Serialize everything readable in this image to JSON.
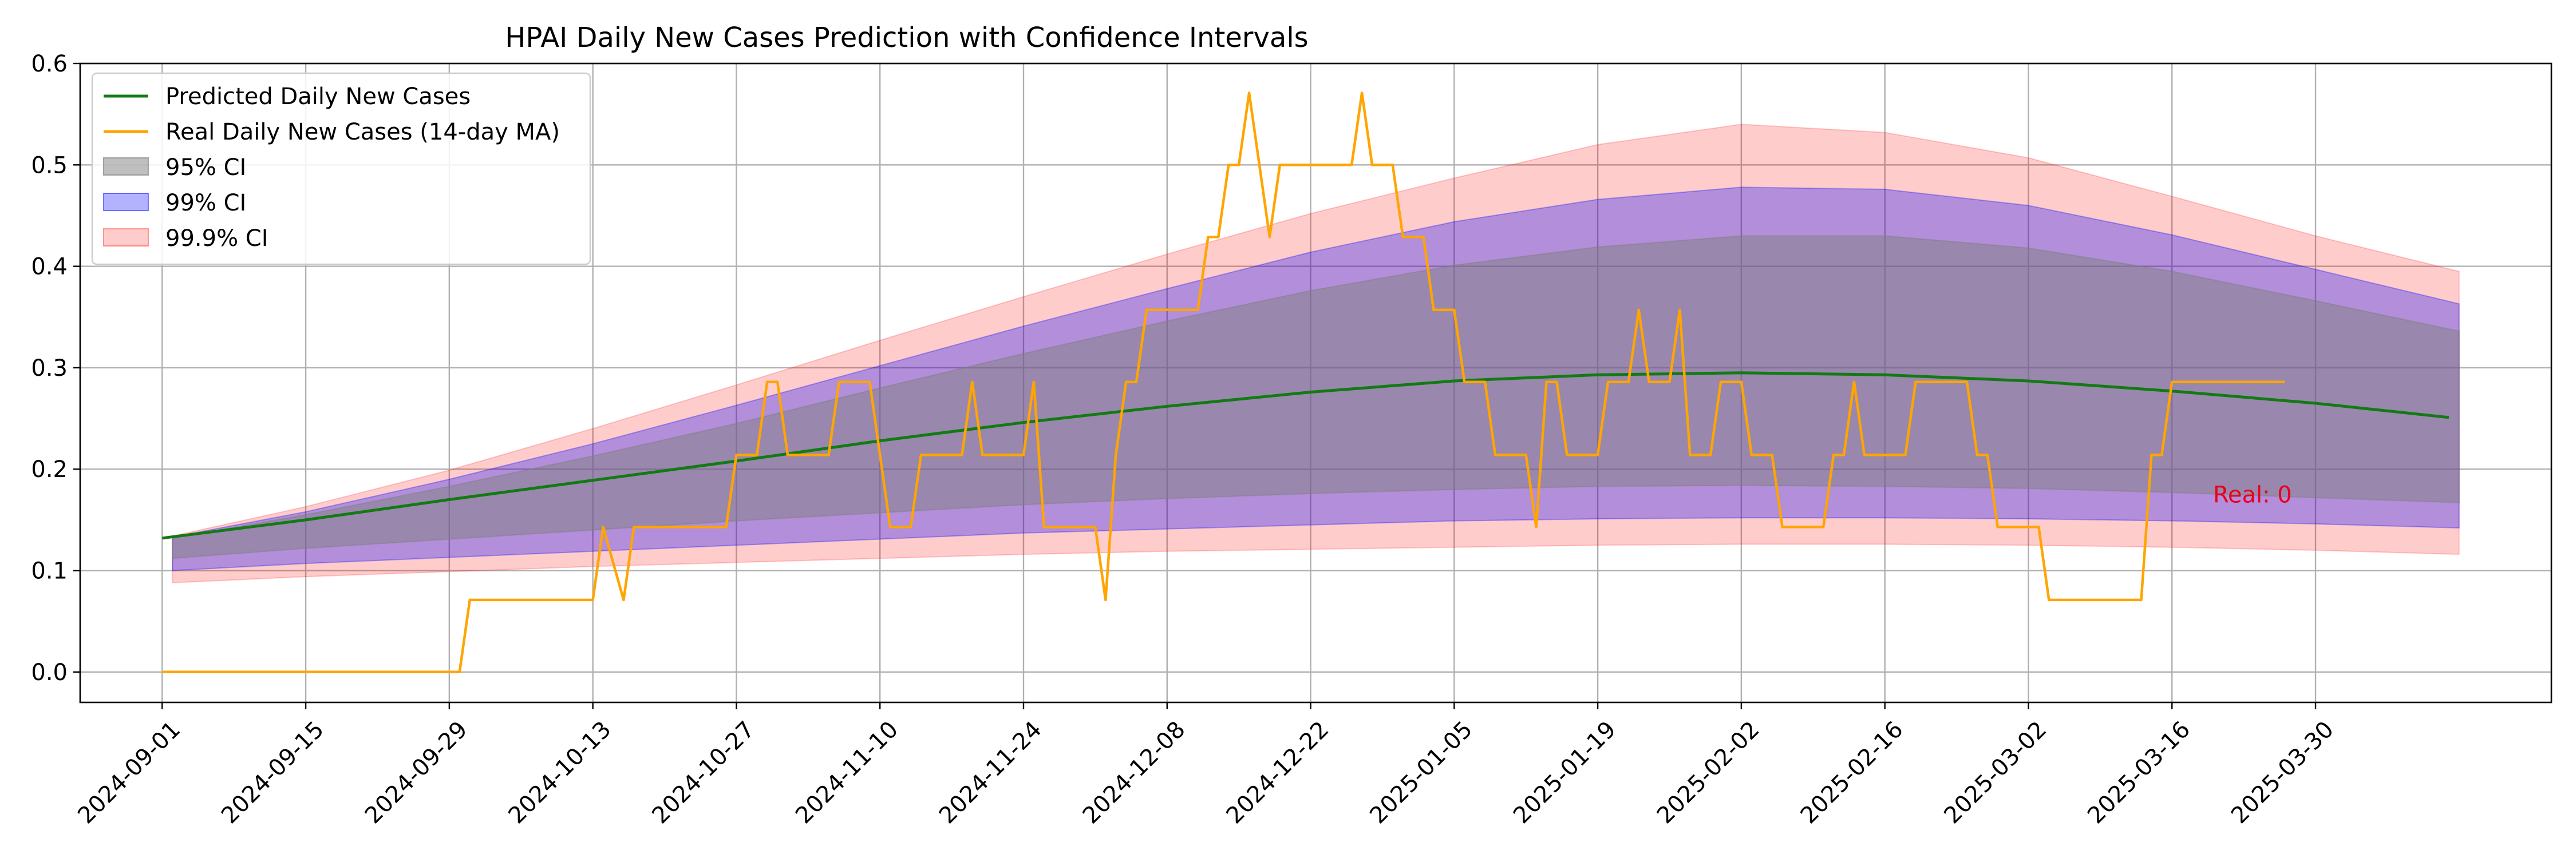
{
  "chart_data": {
    "type": "line",
    "title": "HPAI Daily New Cases Prediction with Confidence Intervals",
    "xlabel": "",
    "ylabel": "",
    "x_range": [
      "2024-08-24",
      "2025-04-22"
    ],
    "ylim": [
      -0.03,
      0.6
    ],
    "y_ticks": [
      0.0,
      0.1,
      0.2,
      0.3,
      0.4,
      0.5,
      0.6
    ],
    "y_tick_labels": [
      "0.0",
      "0.1",
      "0.2",
      "0.3",
      "0.4",
      "0.5",
      "0.6"
    ],
    "x_ticks": [
      "2024-09-01",
      "2024-09-15",
      "2024-09-29",
      "2024-10-13",
      "2024-10-27",
      "2024-11-10",
      "2024-11-24",
      "2024-12-08",
      "2024-12-22",
      "2025-01-05",
      "2025-01-19",
      "2025-02-02",
      "2025-02-16",
      "2025-03-02",
      "2025-03-16",
      "2025-03-30"
    ],
    "grid": true,
    "legend_position": "top-left",
    "annotation": {
      "text": "Real: 0",
      "x": "2025-03-20",
      "y": 0.175,
      "color": "#e8001c"
    },
    "series": [
      {
        "name": "Predicted Daily New Cases",
        "kind": "line",
        "color": "#137a13",
        "points": [
          [
            "2024-09-01",
            0.132
          ],
          [
            "2024-09-15",
            0.15
          ],
          [
            "2024-09-29",
            0.17
          ],
          [
            "2024-10-13",
            0.189
          ],
          [
            "2024-10-27",
            0.208
          ],
          [
            "2024-11-10",
            0.228
          ],
          [
            "2024-11-24",
            0.246
          ],
          [
            "2024-12-08",
            0.262
          ],
          [
            "2024-12-22",
            0.276
          ],
          [
            "2025-01-05",
            0.287
          ],
          [
            "2025-01-19",
            0.293
          ],
          [
            "2025-02-02",
            0.295
          ],
          [
            "2025-02-16",
            0.293
          ],
          [
            "2025-03-02",
            0.287
          ],
          [
            "2025-03-16",
            0.277
          ],
          [
            "2025-03-30",
            0.265
          ],
          [
            "2025-04-12",
            0.251
          ]
        ]
      },
      {
        "name": "Real Daily New Cases (14-day MA)",
        "kind": "step",
        "color": "#ffa500",
        "points": [
          [
            "2024-09-01",
            0.0
          ],
          [
            "2024-09-30",
            0.0
          ],
          [
            "2024-10-01",
            0.071
          ],
          [
            "2024-10-13",
            0.071
          ],
          [
            "2024-10-14",
            0.143
          ],
          [
            "2024-10-16",
            0.071
          ],
          [
            "2024-10-17",
            0.143
          ],
          [
            "2024-10-26",
            0.143
          ],
          [
            "2024-10-27",
            0.214
          ],
          [
            "2024-10-29",
            0.214
          ],
          [
            "2024-10-30",
            0.286
          ],
          [
            "2024-10-31",
            0.286
          ],
          [
            "2024-11-01",
            0.214
          ],
          [
            "2024-11-05",
            0.214
          ],
          [
            "2024-11-06",
            0.286
          ],
          [
            "2024-11-09",
            0.286
          ],
          [
            "2024-11-10",
            0.214
          ],
          [
            "2024-11-11",
            0.143
          ],
          [
            "2024-11-13",
            0.143
          ],
          [
            "2024-11-14",
            0.214
          ],
          [
            "2024-11-18",
            0.214
          ],
          [
            "2024-11-19",
            0.286
          ],
          [
            "2024-11-20",
            0.214
          ],
          [
            "2024-11-24",
            0.214
          ],
          [
            "2024-11-25",
            0.286
          ],
          [
            "2024-11-26",
            0.143
          ],
          [
            "2024-12-01",
            0.143
          ],
          [
            "2024-12-02",
            0.071
          ],
          [
            "2024-12-03",
            0.214
          ],
          [
            "2024-12-04",
            0.286
          ],
          [
            "2024-12-05",
            0.286
          ],
          [
            "2024-12-06",
            0.357
          ],
          [
            "2024-12-11",
            0.357
          ],
          [
            "2024-12-12",
            0.429
          ],
          [
            "2024-12-13",
            0.429
          ],
          [
            "2024-12-14",
            0.5
          ],
          [
            "2024-12-15",
            0.5
          ],
          [
            "2024-12-16",
            0.571
          ],
          [
            "2024-12-18",
            0.429
          ],
          [
            "2024-12-19",
            0.5
          ],
          [
            "2024-12-26",
            0.5
          ],
          [
            "2024-12-27",
            0.571
          ],
          [
            "2024-12-28",
            0.5
          ],
          [
            "2024-12-30",
            0.5
          ],
          [
            "2024-12-31",
            0.429
          ],
          [
            "2025-01-02",
            0.429
          ],
          [
            "2025-01-03",
            0.357
          ],
          [
            "2025-01-05",
            0.357
          ],
          [
            "2025-01-06",
            0.286
          ],
          [
            "2025-01-08",
            0.286
          ],
          [
            "2025-01-09",
            0.214
          ],
          [
            "2025-01-12",
            0.214
          ],
          [
            "2025-01-13",
            0.143
          ],
          [
            "2025-01-14",
            0.286
          ],
          [
            "2025-01-15",
            0.286
          ],
          [
            "2025-01-16",
            0.214
          ],
          [
            "2025-01-19",
            0.214
          ],
          [
            "2025-01-20",
            0.286
          ],
          [
            "2025-01-22",
            0.286
          ],
          [
            "2025-01-23",
            0.357
          ],
          [
            "2025-01-24",
            0.286
          ],
          [
            "2025-01-26",
            0.286
          ],
          [
            "2025-01-27",
            0.357
          ],
          [
            "2025-01-28",
            0.214
          ],
          [
            "2025-01-30",
            0.214
          ],
          [
            "2025-01-31",
            0.286
          ],
          [
            "2025-02-02",
            0.286
          ],
          [
            "2025-02-03",
            0.214
          ],
          [
            "2025-02-05",
            0.214
          ],
          [
            "2025-02-06",
            0.143
          ],
          [
            "2025-02-10",
            0.143
          ],
          [
            "2025-02-11",
            0.214
          ],
          [
            "2025-02-12",
            0.214
          ],
          [
            "2025-02-13",
            0.286
          ],
          [
            "2025-02-14",
            0.214
          ],
          [
            "2025-02-18",
            0.214
          ],
          [
            "2025-02-19",
            0.286
          ],
          [
            "2025-02-24",
            0.286
          ],
          [
            "2025-02-25",
            0.214
          ],
          [
            "2025-02-26",
            0.214
          ],
          [
            "2025-02-27",
            0.143
          ],
          [
            "2025-03-03",
            0.143
          ],
          [
            "2025-03-04",
            0.071
          ],
          [
            "2025-03-13",
            0.071
          ],
          [
            "2025-03-14",
            0.214
          ],
          [
            "2025-03-15",
            0.214
          ],
          [
            "2025-03-16",
            0.286
          ],
          [
            "2025-03-27",
            0.286
          ]
        ]
      },
      {
        "name": "95% CI",
        "kind": "band",
        "color": "#808080",
        "upper": [
          [
            "2024-09-02",
            0.132
          ],
          [
            "2024-09-15",
            0.155
          ],
          [
            "2024-09-29",
            0.183
          ],
          [
            "2024-10-13",
            0.213
          ],
          [
            "2024-10-27",
            0.245
          ],
          [
            "2024-11-10",
            0.28
          ],
          [
            "2024-11-24",
            0.314
          ],
          [
            "2024-12-08",
            0.346
          ],
          [
            "2024-12-22",
            0.376
          ],
          [
            "2025-01-05",
            0.401
          ],
          [
            "2025-01-19",
            0.419
          ],
          [
            "2025-02-02",
            0.43
          ],
          [
            "2025-02-16",
            0.43
          ],
          [
            "2025-03-02",
            0.418
          ],
          [
            "2025-03-16",
            0.395
          ],
          [
            "2025-03-30",
            0.366
          ],
          [
            "2025-04-13",
            0.336
          ]
        ],
        "lower": [
          [
            "2024-09-02",
            0.112
          ],
          [
            "2024-09-15",
            0.122
          ],
          [
            "2024-09-29",
            0.131
          ],
          [
            "2024-10-13",
            0.14
          ],
          [
            "2024-10-27",
            0.149
          ],
          [
            "2024-11-10",
            0.157
          ],
          [
            "2024-11-24",
            0.165
          ],
          [
            "2024-12-08",
            0.171
          ],
          [
            "2024-12-22",
            0.176
          ],
          [
            "2025-01-05",
            0.18
          ],
          [
            "2025-01-19",
            0.183
          ],
          [
            "2025-02-02",
            0.184
          ],
          [
            "2025-02-16",
            0.183
          ],
          [
            "2025-03-02",
            0.181
          ],
          [
            "2025-03-16",
            0.177
          ],
          [
            "2025-03-30",
            0.172
          ],
          [
            "2025-04-13",
            0.167
          ]
        ]
      },
      {
        "name": "99% CI",
        "kind": "band",
        "color": "#0000ff",
        "upper": [
          [
            "2024-09-02",
            0.133
          ],
          [
            "2024-09-15",
            0.158
          ],
          [
            "2024-09-29",
            0.19
          ],
          [
            "2024-10-13",
            0.225
          ],
          [
            "2024-10-27",
            0.263
          ],
          [
            "2024-11-10",
            0.302
          ],
          [
            "2024-11-24",
            0.341
          ],
          [
            "2024-12-08",
            0.378
          ],
          [
            "2024-12-22",
            0.414
          ],
          [
            "2025-01-05",
            0.444
          ],
          [
            "2025-01-19",
            0.466
          ],
          [
            "2025-02-02",
            0.478
          ],
          [
            "2025-02-16",
            0.476
          ],
          [
            "2025-03-02",
            0.46
          ],
          [
            "2025-03-16",
            0.431
          ],
          [
            "2025-03-30",
            0.397
          ],
          [
            "2025-04-13",
            0.363
          ]
        ],
        "lower": [
          [
            "2024-09-02",
            0.1
          ],
          [
            "2024-09-15",
            0.107
          ],
          [
            "2024-09-29",
            0.113
          ],
          [
            "2024-10-13",
            0.119
          ],
          [
            "2024-10-27",
            0.125
          ],
          [
            "2024-11-10",
            0.131
          ],
          [
            "2024-11-24",
            0.137
          ],
          [
            "2024-12-08",
            0.141
          ],
          [
            "2024-12-22",
            0.145
          ],
          [
            "2025-01-05",
            0.149
          ],
          [
            "2025-01-19",
            0.151
          ],
          [
            "2025-02-02",
            0.152
          ],
          [
            "2025-02-16",
            0.152
          ],
          [
            "2025-03-02",
            0.151
          ],
          [
            "2025-03-16",
            0.149
          ],
          [
            "2025-03-30",
            0.146
          ],
          [
            "2025-04-13",
            0.142
          ]
        ]
      },
      {
        "name": "99.9% CI",
        "kind": "band",
        "color": "#ff0000",
        "upper": [
          [
            "2024-09-02",
            0.134
          ],
          [
            "2024-09-15",
            0.163
          ],
          [
            "2024-09-29",
            0.199
          ],
          [
            "2024-10-13",
            0.24
          ],
          [
            "2024-10-27",
            0.283
          ],
          [
            "2024-11-10",
            0.327
          ],
          [
            "2024-11-24",
            0.37
          ],
          [
            "2024-12-08",
            0.412
          ],
          [
            "2024-12-22",
            0.452
          ],
          [
            "2025-01-05",
            0.487
          ],
          [
            "2025-01-19",
            0.52
          ],
          [
            "2025-02-02",
            0.54
          ],
          [
            "2025-02-16",
            0.532
          ],
          [
            "2025-03-02",
            0.507
          ],
          [
            "2025-03-16",
            0.469
          ],
          [
            "2025-03-30",
            0.43
          ],
          [
            "2025-04-13",
            0.395
          ]
        ],
        "lower": [
          [
            "2024-09-02",
            0.088
          ],
          [
            "2024-09-15",
            0.094
          ],
          [
            "2024-09-29",
            0.099
          ],
          [
            "2024-10-13",
            0.104
          ],
          [
            "2024-10-27",
            0.108
          ],
          [
            "2024-11-10",
            0.112
          ],
          [
            "2024-11-24",
            0.116
          ],
          [
            "2024-12-08",
            0.119
          ],
          [
            "2024-12-22",
            0.121
          ],
          [
            "2025-01-05",
            0.123
          ],
          [
            "2025-01-19",
            0.125
          ],
          [
            "2025-02-02",
            0.126
          ],
          [
            "2025-02-16",
            0.126
          ],
          [
            "2025-03-02",
            0.125
          ],
          [
            "2025-03-16",
            0.123
          ],
          [
            "2025-03-30",
            0.12
          ],
          [
            "2025-04-13",
            0.116
          ]
        ]
      }
    ]
  }
}
